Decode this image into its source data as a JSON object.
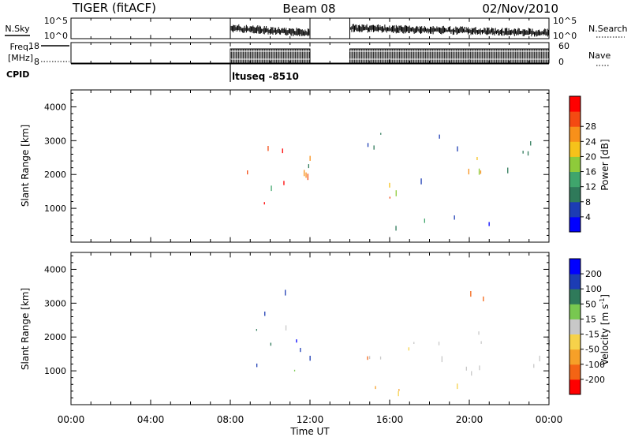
{
  "header": {
    "title": "TIGER (fitACF)",
    "beam": "Beam 08",
    "date": "02/Nov/2010"
  },
  "top_panels": {
    "nsky": {
      "label": "N.Sky",
      "y_ticks": [
        "10^5",
        "10^0"
      ]
    },
    "freq": {
      "label_line1": "Freq.",
      "label_line2": "[MHz]",
      "y_ticks": [
        "18",
        "8"
      ]
    },
    "right": {
      "ticks": [
        "10^5",
        "10^0",
        "60",
        "0"
      ],
      "nsearch_label": "N.Search",
      "nave_label": "Nave"
    },
    "cpid": {
      "label": "CPID",
      "value": "ltuseq -8510"
    }
  },
  "x_axis": {
    "label": "Time UT",
    "ticks": [
      "00:00",
      "04:00",
      "08:00",
      "12:00",
      "16:00",
      "20:00",
      "00:00"
    ],
    "range_hours": [
      0,
      24
    ]
  },
  "colors": {
    "power": [
      "#0000ff",
      "#1c3cb4",
      "#2f7a5a",
      "#3fa56c",
      "#8ecb3a",
      "#f6c21a",
      "#f8901a",
      "#f44a12",
      "#ff0000"
    ],
    "velocity": [
      "#0000ff",
      "#1c3cb4",
      "#2f7a5a",
      "#78c850",
      "#c8c8c8",
      "#f6d24a",
      "#f6a028",
      "#f46414",
      "#ff0000"
    ]
  },
  "chart_data": [
    {
      "type": "heatmap",
      "name": "power",
      "ylabel": "Slant Range [km]",
      "y_ticks": [
        1000,
        2000,
        3000,
        4000
      ],
      "ylim": [
        0,
        4500
      ],
      "xlim": [
        0,
        24
      ],
      "colorbar": {
        "label": "Power [dB]",
        "ticks": [
          "4",
          "8",
          "12",
          "16",
          "20",
          "24",
          "28"
        ]
      },
      "data_intervals_hours": [
        [
          8.0,
          12.0
        ],
        [
          14.0,
          24.0
        ]
      ],
      "clusters": [
        {
          "t0": 8.0,
          "t1": 12.0,
          "r0": 800,
          "r1": 3300,
          "level_low": 2,
          "level_high": 8
        },
        {
          "t0": 8.0,
          "t1": 12.0,
          "r0": 1100,
          "r1": 2100,
          "level_low": 6,
          "level_high": 8
        },
        {
          "t0": 14.0,
          "t1": 16.5,
          "r0": 300,
          "r1": 2200,
          "level_low": 2,
          "level_high": 8
        },
        {
          "t0": 16.0,
          "t1": 24.0,
          "r0": 250,
          "r1": 700,
          "level_low": 0,
          "level_high": 3
        },
        {
          "t0": 17.5,
          "t1": 24.0,
          "r0": 1500,
          "r1": 2700,
          "level_low": 1,
          "level_high": 7
        },
        {
          "t0": 14.0,
          "t1": 24.0,
          "r0": 2500,
          "r1": 3300,
          "level_low": 0,
          "level_high": 2
        }
      ]
    },
    {
      "type": "heatmap",
      "name": "velocity",
      "ylabel": "Slant Range [km]",
      "y_ticks": [
        1000,
        2000,
        3000,
        4000
      ],
      "ylim": [
        0,
        4500
      ],
      "xlim": [
        0,
        24
      ],
      "colorbar": {
        "label": "Velocity [m s^-1]",
        "ticks": [
          "200",
          "100",
          "50",
          "15",
          "-15",
          "-50",
          "-100",
          "-200"
        ]
      },
      "data_intervals_hours": [
        [
          8.0,
          12.0
        ],
        [
          14.0,
          24.0
        ]
      ],
      "clusters": [
        {
          "t0": 8.0,
          "t1": 12.0,
          "r0": 800,
          "r1": 3300,
          "level_low": 0,
          "level_high": 4
        },
        {
          "t0": 8.0,
          "t1": 12.0,
          "r0": 1200,
          "r1": 1800,
          "level_low": 0,
          "level_high": 2
        },
        {
          "t0": 14.0,
          "t1": 24.0,
          "r0": 700,
          "r1": 2400,
          "level_low": 4,
          "level_high": 4
        },
        {
          "t0": 14.0,
          "t1": 17.0,
          "r0": 1100,
          "r1": 1700,
          "level_low": 5,
          "level_high": 7
        },
        {
          "t0": 14.0,
          "t1": 24.0,
          "r0": 250,
          "r1": 700,
          "level_low": 5,
          "level_high": 6
        },
        {
          "t0": 19.5,
          "t1": 24.0,
          "r0": 2800,
          "r1": 3200,
          "level_low": 7,
          "level_high": 8
        }
      ]
    }
  ]
}
